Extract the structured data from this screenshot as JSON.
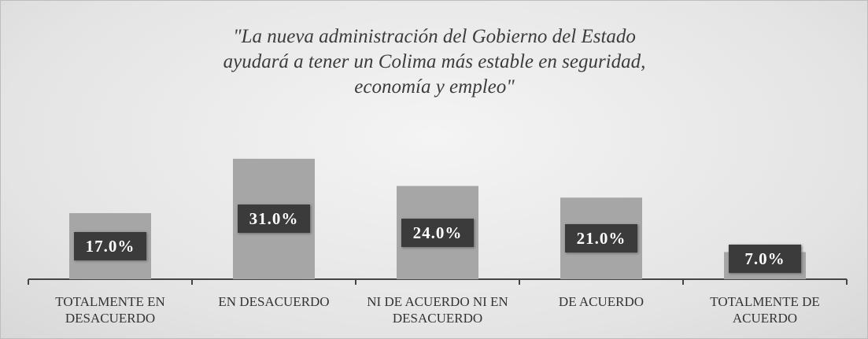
{
  "chart_data": {
    "type": "bar",
    "title": "\"La nueva administración del Gobierno del Estado ayudará a tener un Colima más estable en seguridad, economía y empleo\"",
    "categories": [
      "TOTALMENTE EN DESACUERDO",
      "EN DESACUERDO",
      "NI DE ACUERDO NI EN DESACUERDO",
      "DE ACUERDO",
      "TOTALMENTE DE ACUERDO"
    ],
    "values": [
      17,
      31,
      24,
      21,
      7
    ],
    "value_labels": [
      "17.0%",
      "31.0%",
      "24.0%",
      "21.0%",
      "7.0%"
    ],
    "color": "#a6a6a6"
  }
}
